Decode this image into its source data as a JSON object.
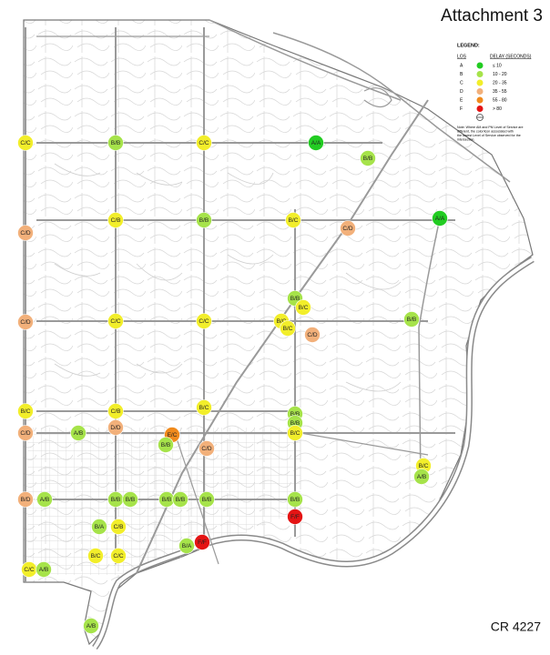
{
  "header": {
    "title": "Attachment 3",
    "footer": "CR 4227"
  },
  "legend": {
    "title": "LEGEND:",
    "los_heading": "LOS",
    "delay_heading": "DELAY (SECONDS)",
    "rows": [
      {
        "los": "A",
        "delay": "≤ 10",
        "color": "#22cc22"
      },
      {
        "los": "B",
        "delay": "10 - 20",
        "color": "#a6e34a"
      },
      {
        "los": "C",
        "delay": "20 - 35",
        "color": "#f2ee2a"
      },
      {
        "los": "D",
        "delay": "35 - 55",
        "color": "#f2b07a"
      },
      {
        "los": "E",
        "delay": "55 - 80",
        "color": "#f08a1c"
      },
      {
        "los": "F",
        "delay": "> 80",
        "color": "#e41414"
      }
    ],
    "note": "Note: Where AM and PM Level of Service are different, the color/icon associated with the lowest Level of Service observed for the intersection."
  },
  "intersections": [
    {
      "label": "C/C",
      "color": "#f2ee2a"
    },
    {
      "label": "B/B",
      "color": "#a6e34a"
    },
    {
      "label": "C/C",
      "color": "#f2ee2a"
    },
    {
      "label": "A/A",
      "color": "#22cc22"
    },
    {
      "label": "B/B",
      "color": "#a6e34a"
    },
    {
      "label": "C/B",
      "color": "#f2ee2a"
    },
    {
      "label": "C/D",
      "color": "#f2b07a"
    },
    {
      "label": "B/B",
      "color": "#a6e34a"
    },
    {
      "label": "B/C",
      "color": "#f2ee2a"
    },
    {
      "label": "C/D",
      "color": "#f2b07a"
    },
    {
      "label": "A/A",
      "color": "#22cc22"
    },
    {
      "label": "B/B",
      "color": "#a6e34a"
    },
    {
      "label": "B/C",
      "color": "#f2ee2a"
    },
    {
      "label": "B/C",
      "color": "#f2ee2a"
    },
    {
      "label": "B/C",
      "color": "#f2ee2a"
    },
    {
      "label": "C/D",
      "color": "#f2b07a"
    },
    {
      "label": "B/B",
      "color": "#a6e34a"
    },
    {
      "label": "C/D",
      "color": "#f2b07a"
    },
    {
      "label": "C/C",
      "color": "#f2ee2a"
    },
    {
      "label": "C/C",
      "color": "#f2ee2a"
    },
    {
      "label": "B/C",
      "color": "#f2ee2a"
    },
    {
      "label": "C/B",
      "color": "#f2ee2a"
    },
    {
      "label": "B/C",
      "color": "#f2ee2a"
    },
    {
      "label": "B/B",
      "color": "#a6e34a"
    },
    {
      "label": "B/B",
      "color": "#a6e34a"
    },
    {
      "label": "B/C",
      "color": "#f2ee2a"
    },
    {
      "label": "C/D",
      "color": "#f2b07a"
    },
    {
      "label": "A/B",
      "color": "#a6e34a"
    },
    {
      "label": "D/D",
      "color": "#f2b07a"
    },
    {
      "label": "E/C",
      "color": "#f08a1c"
    },
    {
      "label": "B/B",
      "color": "#a6e34a"
    },
    {
      "label": "C/D",
      "color": "#f2b07a"
    },
    {
      "label": "B/C",
      "color": "#f2ee2a"
    },
    {
      "label": "A/B",
      "color": "#a6e34a"
    },
    {
      "label": "B/D",
      "color": "#f2b07a"
    },
    {
      "label": "A/B",
      "color": "#a6e34a"
    },
    {
      "label": "B/B",
      "color": "#a6e34a"
    },
    {
      "label": "B/B",
      "color": "#a6e34a"
    },
    {
      "label": "B/B",
      "color": "#a6e34a"
    },
    {
      "label": "B/B",
      "color": "#a6e34a"
    },
    {
      "label": "B/B",
      "color": "#a6e34a"
    },
    {
      "label": "B/B",
      "color": "#a6e34a"
    },
    {
      "label": "F/F",
      "color": "#e41414"
    },
    {
      "label": "B/A",
      "color": "#a6e34a"
    },
    {
      "label": "C/B",
      "color": "#f2ee2a"
    },
    {
      "label": "F/F",
      "color": "#e41414"
    },
    {
      "label": "B/A",
      "color": "#a6e34a"
    },
    {
      "label": "B/C",
      "color": "#f2ee2a"
    },
    {
      "label": "C/C",
      "color": "#f2ee2a"
    },
    {
      "label": "C/C",
      "color": "#f2ee2a"
    },
    {
      "label": "A/B",
      "color": "#a6e34a"
    },
    {
      "label": "A/B",
      "color": "#a6e34a"
    }
  ]
}
